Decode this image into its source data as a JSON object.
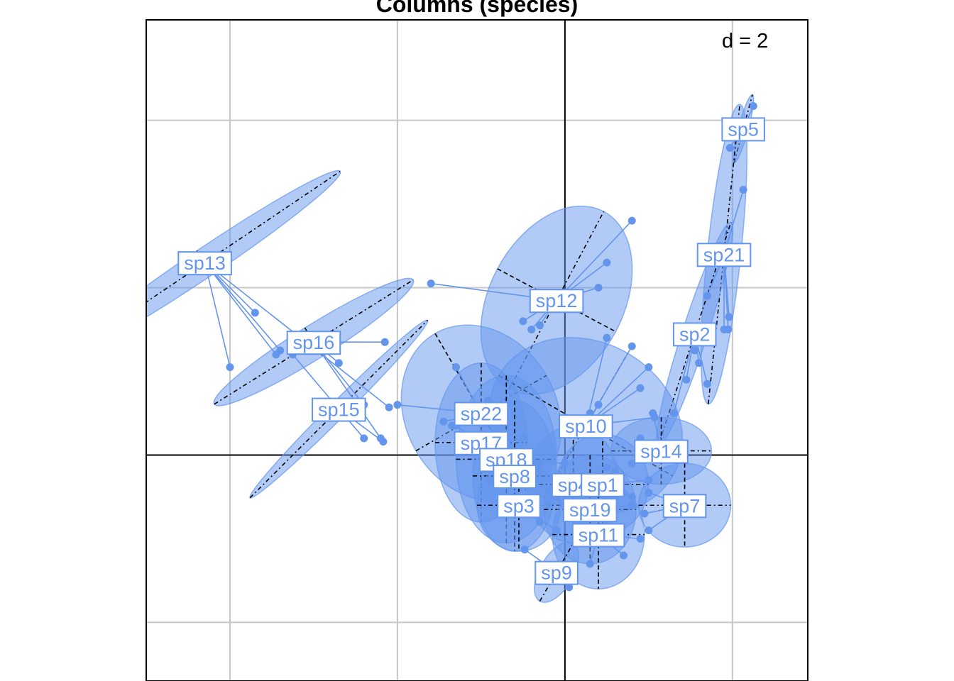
{
  "title": "Columns (species)",
  "scale_label": "d = 2",
  "colors": {
    "species": "#6495ed",
    "fill": "#6495ed",
    "axis": "#000000",
    "grid": "#c8c8c8",
    "background": "#ffffff"
  },
  "chart_data": {
    "type": "scatter",
    "subtype": "s.class ordination plot (star + ellipse per species)",
    "grid_spacing": 2,
    "xlim": [
      -5,
      2.9
    ],
    "ylim": [
      -2.7,
      5.2
    ],
    "grid": true,
    "origin_axes": true,
    "species": [
      {
        "name": "sp5",
        "center": [
          2.13,
          3.9
        ],
        "ellipse": {
          "rx": 0.06,
          "ry": 0.42,
          "angle": -75
        },
        "points": [
          [
            2.25,
            4.17
          ],
          [
            1.97,
            3.67
          ]
        ]
      },
      {
        "name": "sp21",
        "center": [
          1.9,
          2.4
        ],
        "ellipse": {
          "rx": 0.2,
          "ry": 1.8,
          "angle": -84
        },
        "points": [
          [
            2.13,
            3.17
          ],
          [
            1.9,
            1.5
          ],
          [
            1.96,
            1.65
          ],
          [
            1.95,
            1.5
          ],
          [
            1.7,
            1.9
          ],
          [
            1.85,
            2.5
          ]
        ]
      },
      {
        "name": "sp2",
        "center": [
          1.55,
          1.45
        ],
        "ellipse": {
          "rx": 0.15,
          "ry": 1.4,
          "angle": -72
        },
        "points": [
          [
            1.55,
            1.25
          ],
          [
            1.45,
            0.9
          ],
          [
            1.7,
            0.85
          ],
          [
            1.3,
            0.5
          ],
          [
            1.6,
            1.1
          ]
        ]
      },
      {
        "name": "sp13",
        "center": [
          -4.3,
          2.3
        ],
        "ellipse": {
          "rx": 0.17,
          "ry": 1.95,
          "angle": -34
        },
        "points": [
          [
            -3.45,
            1.2
          ],
          [
            -3.4,
            1.25
          ],
          [
            -2.1,
            0.57
          ],
          [
            -3.7,
            1.7
          ],
          [
            -4.0,
            1.05
          ]
        ]
      },
      {
        "name": "sp16",
        "center": [
          -3.0,
          1.35
        ],
        "ellipse": {
          "rx": 0.2,
          "ry": 1.4,
          "angle": -32
        },
        "points": [
          [
            -2.15,
            1.35
          ],
          [
            -2.4,
            0.6
          ],
          [
            -2.2,
            0.2
          ],
          [
            -2.7,
            1.1
          ]
        ]
      },
      {
        "name": "sp15",
        "center": [
          -2.7,
          0.55
        ],
        "ellipse": {
          "rx": 0.1,
          "ry": 1.5,
          "angle": -45
        },
        "points": [
          [
            -3.25,
            1.2
          ],
          [
            -2.4,
            0.2
          ],
          [
            -2.17,
            0.16
          ]
        ]
      },
      {
        "name": "sp12",
        "center": [
          -0.1,
          1.85
        ],
        "ellipse": {
          "rx": 0.8,
          "ry": 1.2,
          "angle": -62
        },
        "points": [
          [
            -1.6,
            2.05
          ],
          [
            0.8,
            2.8
          ],
          [
            0.5,
            2.3
          ],
          [
            0.4,
            2.0
          ],
          [
            -0.3,
            1.55
          ],
          [
            -0.4,
            1.5
          ],
          [
            -0.5,
            1.6
          ],
          [
            0.0,
            1.9
          ]
        ]
      },
      {
        "name": "sp22",
        "center": [
          -1.0,
          0.5
        ],
        "ellipse": {
          "rx": 1.1,
          "ry": 0.9,
          "angle": -30
        },
        "points": [
          [
            -1.3,
            1.05
          ],
          [
            -2.0,
            0.6
          ],
          [
            -1.45,
            0.4
          ],
          [
            -0.92,
            0.65
          ],
          [
            -0.9,
            0.45
          ],
          [
            -1.35,
            0.35
          ]
        ]
      },
      {
        "name": "sp10",
        "center": [
          0.25,
          0.35
        ],
        "ellipse": {
          "rx": 1.2,
          "ry": 1.0,
          "angle": -60
        },
        "points": [
          [
            0.5,
            1.4
          ],
          [
            0.8,
            1.3
          ],
          [
            1.0,
            1.05
          ],
          [
            0.9,
            0.8
          ],
          [
            1.07,
            0.45
          ],
          [
            0.4,
            0.6
          ],
          [
            0.3,
            0.5
          ]
        ]
      },
      {
        "name": "sp17",
        "center": [
          -1.0,
          0.15
        ],
        "ellipse": {
          "rx": 0.95,
          "ry": 0.55,
          "angle": 0
        },
        "points": [
          [
            -1.3,
            0.35
          ],
          [
            -0.5,
            0.2
          ],
          [
            -0.3,
            -0.1
          ]
        ]
      },
      {
        "name": "sp18",
        "center": [
          -0.7,
          -0.05
        ],
        "ellipse": {
          "rx": 1.0,
          "ry": 0.6,
          "angle": 0
        },
        "points": [
          [
            -1.2,
            0.15
          ],
          [
            -0.3,
            -0.2
          ],
          [
            0.0,
            -0.1
          ]
        ]
      },
      {
        "name": "sp8",
        "center": [
          -0.6,
          -0.25
        ],
        "ellipse": {
          "rx": 0.9,
          "ry": 0.5,
          "angle": 0
        },
        "points": [
          [
            -0.9,
            -0.3
          ],
          [
            -0.2,
            -0.4
          ],
          [
            -0.1,
            -0.3
          ]
        ]
      },
      {
        "name": "sp14",
        "center": [
          1.15,
          0.05
        ],
        "ellipse": {
          "rx": 0.4,
          "ry": 0.6,
          "angle": 0
        },
        "points": [
          [
            1.05,
            0.5
          ],
          [
            0.9,
            0.2
          ],
          [
            0.8,
            -0.1
          ]
        ]
      },
      {
        "name": "sp4",
        "center": [
          0.1,
          -0.35
        ],
        "ellipse": {
          "rx": 0.7,
          "ry": 0.55,
          "angle": 0
        },
        "points": [
          [
            0.5,
            -0.15
          ],
          [
            0.3,
            -0.4
          ],
          [
            -0.1,
            -0.5
          ]
        ]
      },
      {
        "name": "sp1",
        "center": [
          0.45,
          -0.35
        ],
        "ellipse": {
          "rx": 0.6,
          "ry": 0.55,
          "angle": 0
        },
        "points": [
          [
            1.0,
            -0.3
          ],
          [
            0.8,
            -0.5
          ],
          [
            0.6,
            -0.2
          ]
        ]
      },
      {
        "name": "sp7",
        "center": [
          1.43,
          -0.6
        ],
        "ellipse": {
          "rx": 0.5,
          "ry": 0.55,
          "angle": 0
        },
        "points": [
          [
            1.0,
            -0.45
          ],
          [
            0.95,
            -0.7
          ],
          [
            1.0,
            -0.9
          ]
        ]
      },
      {
        "name": "sp3",
        "center": [
          -0.55,
          -0.6
        ],
        "ellipse": {
          "rx": 0.55,
          "ry": 0.5,
          "angle": 0
        },
        "points": [
          [
            -0.3,
            -0.8
          ],
          [
            -0.1,
            -0.9
          ],
          [
            -0.2,
            -0.6
          ]
        ]
      },
      {
        "name": "sp19",
        "center": [
          0.3,
          -0.65
        ],
        "ellipse": {
          "rx": 0.65,
          "ry": 0.55,
          "angle": 0
        },
        "points": [
          [
            0.8,
            -0.6
          ],
          [
            0.6,
            -0.9
          ],
          [
            0.2,
            -1.0
          ]
        ]
      },
      {
        "name": "sp11",
        "center": [
          0.4,
          -0.95
        ],
        "ellipse": {
          "rx": 0.65,
          "ry": 0.55,
          "angle": 0
        },
        "points": [
          [
            0.7,
            -1.2
          ],
          [
            0.3,
            -1.3
          ],
          [
            0.9,
            -1.0
          ]
        ]
      },
      {
        "name": "sp9",
        "center": [
          -0.1,
          -1.4
        ],
        "ellipse": {
          "rx": 0.2,
          "ry": 0.4,
          "angle": -60
        },
        "points": [
          [
            -0.48,
            -1.13
          ],
          [
            0.05,
            -1.58
          ],
          [
            -0.2,
            -1.5
          ]
        ]
      }
    ]
  }
}
